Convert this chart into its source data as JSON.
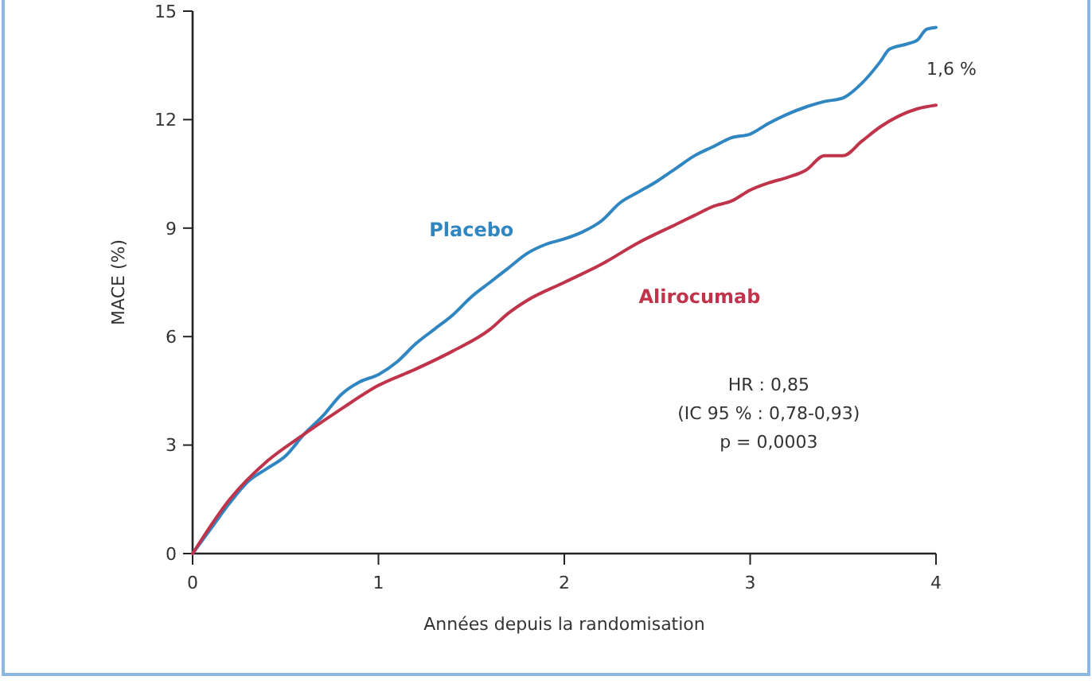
{
  "chart_data": {
    "type": "line",
    "xlabel": "Années depuis la randomisation",
    "ylabel": "MACE (%)",
    "xlim": [
      0,
      4
    ],
    "xticks": [
      0,
      1,
      2,
      3,
      4
    ],
    "ylim": [
      0,
      15
    ],
    "yticks": [
      0,
      3,
      6,
      9,
      12,
      15
    ],
    "grid": false,
    "marker": "none",
    "line_style": "solid",
    "series": [
      {
        "name": "Placebo",
        "color": "#2f86c0",
        "x": [
          0,
          0.1,
          0.2,
          0.3,
          0.4,
          0.5,
          0.6,
          0.7,
          0.8,
          0.9,
          1.0,
          1.1,
          1.2,
          1.3,
          1.4,
          1.5,
          1.6,
          1.7,
          1.8,
          1.9,
          2.0,
          2.1,
          2.2,
          2.3,
          2.4,
          2.5,
          2.6,
          2.7,
          2.8,
          2.9,
          3.0,
          3.1,
          3.2,
          3.3,
          3.4,
          3.5,
          3.6,
          3.7,
          3.75,
          3.85,
          3.9,
          3.95,
          4.0
        ],
        "values": [
          0,
          0.7,
          1.4,
          2.0,
          2.35,
          2.7,
          3.3,
          3.8,
          4.4,
          4.75,
          4.95,
          5.3,
          5.8,
          6.2,
          6.6,
          7.1,
          7.5,
          7.9,
          8.3,
          8.55,
          8.7,
          8.9,
          9.2,
          9.7,
          10.0,
          10.3,
          10.65,
          11.0,
          11.25,
          11.5,
          11.6,
          11.9,
          12.15,
          12.35,
          12.5,
          12.6,
          13.0,
          13.6,
          13.95,
          14.1,
          14.2,
          14.5,
          14.55
        ]
      },
      {
        "name": "Alirocumab",
        "color": "#c0344b",
        "x": [
          0,
          0.2,
          0.4,
          0.6,
          0.8,
          1.0,
          1.2,
          1.4,
          1.6,
          1.7,
          1.8,
          2.0,
          2.2,
          2.4,
          2.6,
          2.7,
          2.8,
          2.9,
          3.0,
          3.1,
          3.2,
          3.3,
          3.4,
          3.5,
          3.6,
          3.7,
          3.8,
          3.9,
          4.0
        ],
        "values": [
          0,
          1.5,
          2.55,
          3.3,
          4.0,
          4.65,
          5.1,
          5.6,
          6.2,
          6.65,
          7.0,
          7.5,
          8.0,
          8.6,
          9.1,
          9.35,
          9.6,
          9.75,
          10.05,
          10.25,
          10.4,
          10.6,
          11.0,
          11.0,
          11.4,
          11.8,
          12.1,
          12.3,
          12.4
        ]
      }
    ],
    "annotations": [
      "1,6 %",
      "HR : 0,85\n(IC 95 % : 0,78-0,93)\np = 0,0003"
    ]
  }
}
